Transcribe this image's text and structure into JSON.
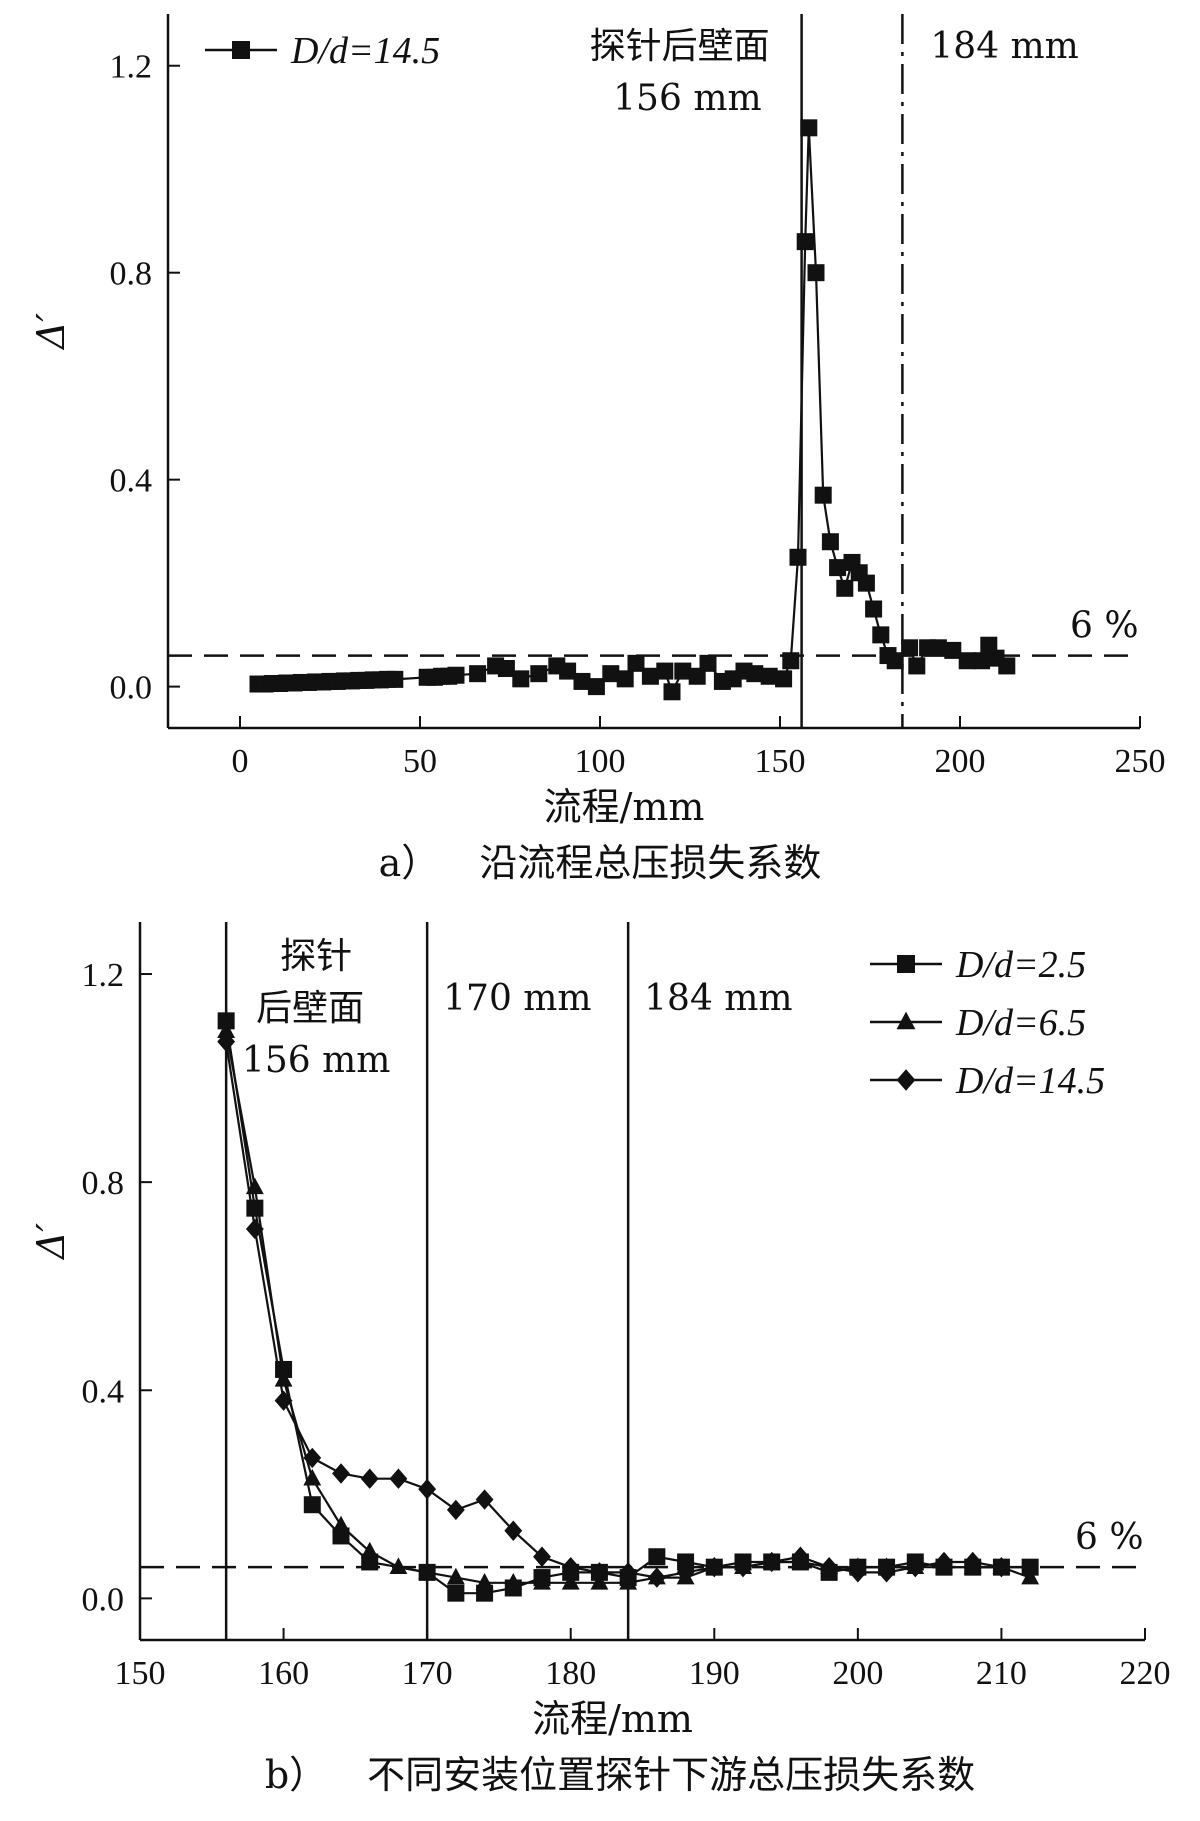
{
  "chart_data": [
    {
      "id": "a",
      "type": "line",
      "caption_prefix": "a）",
      "caption_title": "沿流程总压损失系数",
      "xlabel": "流程/mm",
      "ylabel": "Δ′",
      "xlim": [
        -20,
        250
      ],
      "ylim": [
        -0.08,
        1.3
      ],
      "xticks": [
        0,
        50,
        100,
        150,
        200,
        250
      ],
      "yticks": [
        0.0,
        0.4,
        0.8,
        1.2
      ],
      "ytick_labels": [
        "0.0",
        "0.4",
        "0.8",
        "1.2"
      ],
      "legend_position": "top-left",
      "series": [
        {
          "name": "D/d=14.5",
          "legend_main": "D",
          "legend_rest": "/d=14.5",
          "marker": "square",
          "x": [
            5,
            7,
            9,
            11,
            13,
            15,
            17,
            19,
            21,
            23,
            25,
            27,
            29,
            31,
            33,
            35,
            37,
            39,
            41,
            43,
            52,
            54,
            56,
            58,
            60,
            66,
            71,
            74,
            78,
            83,
            88,
            91,
            95,
            99,
            103,
            107,
            110,
            114,
            118,
            120,
            123,
            127,
            130,
            134,
            137,
            140,
            143,
            147,
            151,
            153,
            155,
            157,
            158,
            160,
            162,
            164,
            166,
            168,
            170,
            172,
            174,
            176,
            178,
            180,
            182,
            186,
            188,
            191,
            194,
            198,
            202,
            206,
            208,
            210,
            213
          ],
          "y": [
            0.005,
            0.005,
            0.006,
            0.006,
            0.007,
            0.007,
            0.008,
            0.008,
            0.009,
            0.009,
            0.01,
            0.01,
            0.011,
            0.011,
            0.012,
            0.012,
            0.013,
            0.013,
            0.014,
            0.014,
            0.018,
            0.018,
            0.02,
            0.02,
            0.022,
            0.025,
            0.04,
            0.035,
            0.015,
            0.025,
            0.04,
            0.03,
            0.01,
            0.0,
            0.025,
            0.015,
            0.045,
            0.02,
            0.03,
            -0.01,
            0.03,
            0.02,
            0.045,
            0.01,
            0.015,
            0.03,
            0.025,
            0.02,
            0.015,
            0.05,
            0.25,
            0.86,
            1.08,
            0.8,
            0.37,
            0.28,
            0.23,
            0.19,
            0.24,
            0.22,
            0.2,
            0.15,
            0.1,
            0.06,
            0.05,
            0.075,
            0.04,
            0.075,
            0.075,
            0.07,
            0.05,
            0.05,
            0.08,
            0.055,
            0.04
          ]
        }
      ],
      "reference_lines": [
        {
          "axis": "x",
          "value": 156,
          "style": "solid",
          "label_top": "探针后壁面",
          "label_bottom": "156 mm"
        },
        {
          "axis": "x",
          "value": 184,
          "style": "dashed",
          "label": "184 mm"
        },
        {
          "axis": "y",
          "value": 0.06,
          "style": "dashed",
          "label": "6 %"
        }
      ]
    },
    {
      "id": "b",
      "type": "line",
      "caption_prefix": "b）",
      "caption_title": "不同安装位置探针下游总压损失系数",
      "xlabel": "流程/mm",
      "ylabel": "Δ′",
      "xlim": [
        150,
        220
      ],
      "ylim": [
        -0.08,
        1.3
      ],
      "xticks": [
        150,
        160,
        170,
        180,
        190,
        200,
        210,
        220
      ],
      "yticks": [
        0.0,
        0.4,
        0.8,
        1.2
      ],
      "ytick_labels": [
        "0.0",
        "0.4",
        "0.8",
        "1.2"
      ],
      "legend_position": "top-right",
      "series": [
        {
          "name": "D/d=2.5",
          "legend_main": "D",
          "legend_rest": "/d=2.5",
          "marker": "square",
          "x": [
            156,
            158,
            160,
            162,
            164,
            166,
            170,
            172,
            174,
            176,
            178,
            180,
            182,
            184,
            186,
            188,
            190,
            192,
            194,
            196,
            198,
            200,
            202,
            204,
            206,
            208,
            210,
            212
          ],
          "y": [
            1.11,
            0.75,
            0.44,
            0.18,
            0.12,
            0.07,
            0.05,
            0.01,
            0.01,
            0.02,
            0.04,
            0.05,
            0.05,
            0.04,
            0.08,
            0.07,
            0.06,
            0.07,
            0.07,
            0.07,
            0.05,
            0.06,
            0.06,
            0.07,
            0.06,
            0.06,
            0.06,
            0.06
          ]
        },
        {
          "name": "D/d=6.5",
          "legend_main": "D",
          "legend_rest": "/d=6.5",
          "marker": "triangle",
          "x": [
            156,
            158,
            160,
            162,
            164,
            166,
            168,
            170,
            172,
            174,
            176,
            178,
            180,
            182,
            184,
            186,
            188,
            190,
            192,
            194,
            196,
            198,
            200,
            202,
            204,
            206,
            208,
            210,
            212
          ],
          "y": [
            1.09,
            0.79,
            0.42,
            0.23,
            0.14,
            0.09,
            0.06,
            0.05,
            0.04,
            0.03,
            0.03,
            0.03,
            0.03,
            0.03,
            0.03,
            0.04,
            0.04,
            0.06,
            0.06,
            0.07,
            0.07,
            0.06,
            0.06,
            0.06,
            0.06,
            0.06,
            0.06,
            0.06,
            0.04
          ]
        },
        {
          "name": "D/d=14.5",
          "legend_main": "D",
          "legend_rest": "/d=14.5",
          "marker": "diamond",
          "x": [
            156,
            158,
            160,
            162,
            164,
            166,
            168,
            170,
            172,
            174,
            176,
            178,
            180,
            182,
            184,
            186,
            188,
            190,
            192,
            194,
            196,
            198,
            200,
            202,
            204,
            206,
            208,
            210
          ],
          "y": [
            1.07,
            0.71,
            0.38,
            0.27,
            0.24,
            0.23,
            0.23,
            0.21,
            0.17,
            0.19,
            0.13,
            0.08,
            0.06,
            0.05,
            0.05,
            0.04,
            0.05,
            0.06,
            0.06,
            0.07,
            0.08,
            0.06,
            0.05,
            0.05,
            0.06,
            0.07,
            0.07,
            0.06
          ]
        }
      ],
      "reference_lines": [
        {
          "axis": "x",
          "value": 156,
          "style": "solid",
          "label_lines": [
            "探针",
            "后壁面",
            "156 mm"
          ]
        },
        {
          "axis": "x",
          "value": 170,
          "style": "solid",
          "label": "170 mm"
        },
        {
          "axis": "x",
          "value": 184,
          "style": "solid",
          "label": "184 mm"
        },
        {
          "axis": "y",
          "value": 0.06,
          "style": "dashed",
          "label": "6 %"
        }
      ]
    }
  ]
}
